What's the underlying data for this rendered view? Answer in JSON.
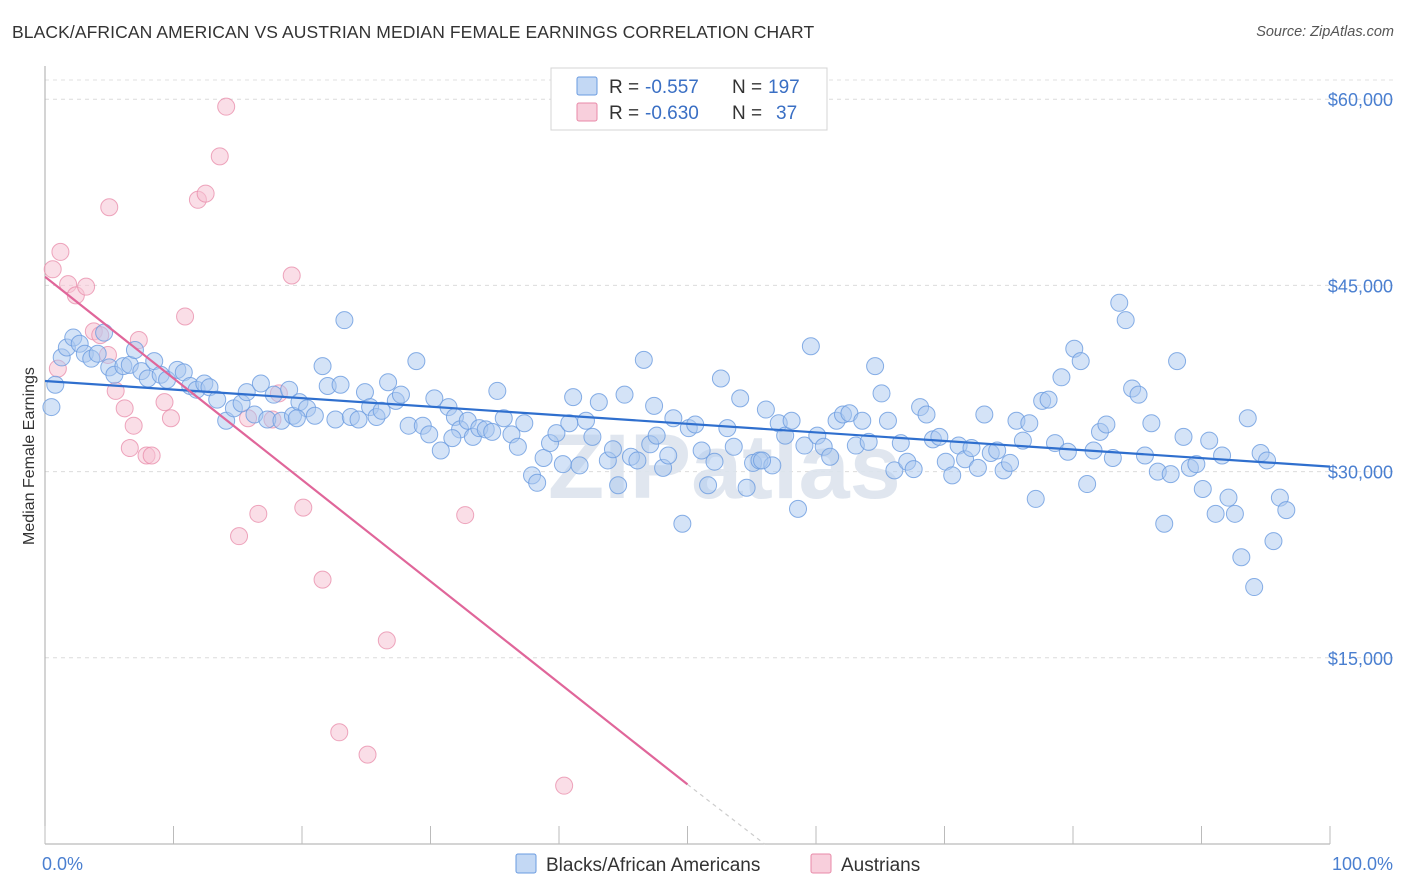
{
  "title": "BLACK/AFRICAN AMERICAN VS AUSTRIAN MEDIAN FEMALE EARNINGS CORRELATION CHART",
  "source": "Source: ZipAtlas.com",
  "watermark": "ZIPatlas",
  "legend_top": [
    {
      "r_label": "R =",
      "r_value": "-0.557",
      "n_label": "N =",
      "n_value": "197",
      "color": "#9bbfee",
      "stroke": "#6a9be0"
    },
    {
      "r_label": "R =",
      "r_value": "-0.630",
      "n_label": "N =",
      "n_value": "37",
      "color": "#f6b8cb",
      "stroke": "#e88aa8"
    }
  ],
  "legend_bottom": [
    "Blacks/African Americans",
    "Austrians"
  ],
  "colors": {
    "blue": "#6a9be0",
    "blue_fill": "#a9c7f0",
    "pink": "#e88aa8",
    "pink_fill": "#f6c3d3",
    "blue_line": "#2f6fce",
    "pink_line": "#e0669a",
    "tick_text": "#4a7fd0"
  },
  "chart_data": {
    "type": "scatter",
    "xlabel": "",
    "ylabel": "Median Female Earnings",
    "xlim": [
      0,
      100
    ],
    "ylim": [
      0,
      63000
    ],
    "x_tick_labels": [
      "0.0%",
      "100.0%"
    ],
    "y_ticks": [
      15000,
      30000,
      45000,
      60000
    ],
    "y_tick_labels": [
      "$15,000",
      "$30,000",
      "$45,000",
      "$60,000"
    ],
    "grid": true,
    "legend_position": "top-center",
    "series": [
      {
        "name": "Blacks/African Americans",
        "trend": {
          "x": [
            0,
            100
          ],
          "y": [
            37300,
            30400
          ]
        },
        "points": [
          [
            0.5,
            35200
          ],
          [
            0.8,
            37000
          ],
          [
            1.3,
            39200
          ],
          [
            1.7,
            40000
          ],
          [
            2.2,
            40800
          ],
          [
            2.7,
            40300
          ],
          [
            3.1,
            39500
          ],
          [
            3.6,
            39100
          ],
          [
            4.1,
            39500
          ],
          [
            4.6,
            41200
          ],
          [
            5.0,
            38400
          ],
          [
            5.4,
            37800
          ],
          [
            6.1,
            38500
          ],
          [
            6.6,
            38600
          ],
          [
            7.0,
            39800
          ],
          [
            7.5,
            38100
          ],
          [
            8.0,
            37500
          ],
          [
            8.5,
            38900
          ],
          [
            9.0,
            37800
          ],
          [
            9.5,
            37400
          ],
          [
            10.3,
            38200
          ],
          [
            10.8,
            38000
          ],
          [
            11.3,
            36900
          ],
          [
            11.8,
            36600
          ],
          [
            12.4,
            37100
          ],
          [
            12.8,
            36800
          ],
          [
            13.4,
            35800
          ],
          [
            14.1,
            34100
          ],
          [
            14.7,
            35100
          ],
          [
            15.3,
            35500
          ],
          [
            15.7,
            36400
          ],
          [
            16.3,
            34600
          ],
          [
            16.8,
            37100
          ],
          [
            17.3,
            34200
          ],
          [
            17.8,
            36200
          ],
          [
            18.4,
            34100
          ],
          [
            19.0,
            36600
          ],
          [
            19.3,
            34500
          ],
          [
            19.8,
            35600
          ],
          [
            20.4,
            35100
          ],
          [
            21.0,
            34500
          ],
          [
            21.6,
            38500
          ],
          [
            22.0,
            36900
          ],
          [
            22.6,
            34200
          ],
          [
            23.0,
            37000
          ],
          [
            23.3,
            42200
          ],
          [
            23.8,
            34400
          ],
          [
            24.4,
            34200
          ],
          [
            24.9,
            36400
          ],
          [
            25.3,
            35200
          ],
          [
            25.8,
            34400
          ],
          [
            26.2,
            34900
          ],
          [
            26.7,
            37200
          ],
          [
            27.3,
            35700
          ],
          [
            27.7,
            36200
          ],
          [
            28.3,
            33700
          ],
          [
            28.9,
            38900
          ],
          [
            29.4,
            33700
          ],
          [
            29.9,
            33000
          ],
          [
            30.3,
            35900
          ],
          [
            30.8,
            31700
          ],
          [
            31.4,
            35200
          ],
          [
            31.9,
            34400
          ],
          [
            32.3,
            33400
          ],
          [
            32.9,
            34100
          ],
          [
            33.3,
            32800
          ],
          [
            33.8,
            33500
          ],
          [
            34.3,
            33400
          ],
          [
            34.8,
            33200
          ],
          [
            35.2,
            36500
          ],
          [
            35.7,
            34300
          ],
          [
            36.3,
            33000
          ],
          [
            36.8,
            32000
          ],
          [
            37.3,
            33900
          ],
          [
            37.9,
            29700
          ],
          [
            38.3,
            29100
          ],
          [
            38.8,
            31100
          ],
          [
            39.3,
            32300
          ],
          [
            39.8,
            33100
          ],
          [
            40.3,
            30600
          ],
          [
            40.8,
            33900
          ],
          [
            41.1,
            36000
          ],
          [
            41.6,
            30500
          ],
          [
            42.1,
            34100
          ],
          [
            42.6,
            32800
          ],
          [
            43.1,
            35600
          ],
          [
            43.8,
            30900
          ],
          [
            44.2,
            31800
          ],
          [
            44.6,
            28900
          ],
          [
            45.1,
            36200
          ],
          [
            45.6,
            31200
          ],
          [
            46.1,
            30900
          ],
          [
            46.6,
            39000
          ],
          [
            47.1,
            32200
          ],
          [
            47.6,
            32900
          ],
          [
            48.1,
            30300
          ],
          [
            48.5,
            31300
          ],
          [
            48.9,
            34300
          ],
          [
            49.6,
            25800
          ],
          [
            50.1,
            33500
          ],
          [
            50.6,
            33800
          ],
          [
            51.1,
            31700
          ],
          [
            51.6,
            28900
          ],
          [
            52.1,
            30800
          ],
          [
            52.6,
            37500
          ],
          [
            53.1,
            33500
          ],
          [
            53.6,
            32000
          ],
          [
            54.1,
            35900
          ],
          [
            54.6,
            28700
          ],
          [
            55.1,
            30700
          ],
          [
            55.6,
            30900
          ],
          [
            56.1,
            35000
          ],
          [
            56.6,
            30500
          ],
          [
            57.1,
            33900
          ],
          [
            57.6,
            32900
          ],
          [
            58.1,
            34100
          ],
          [
            58.6,
            27000
          ],
          [
            59.1,
            32100
          ],
          [
            59.6,
            40100
          ],
          [
            60.1,
            32900
          ],
          [
            60.6,
            32000
          ],
          [
            61.1,
            31200
          ],
          [
            61.6,
            34100
          ],
          [
            62.1,
            34600
          ],
          [
            62.6,
            34700
          ],
          [
            63.1,
            32100
          ],
          [
            63.6,
            34100
          ],
          [
            64.1,
            32400
          ],
          [
            64.6,
            38500
          ],
          [
            65.1,
            36300
          ],
          [
            65.6,
            34100
          ],
          [
            66.1,
            30100
          ],
          [
            66.6,
            32300
          ],
          [
            67.1,
            30800
          ],
          [
            67.6,
            30200
          ],
          [
            68.1,
            35200
          ],
          [
            68.6,
            34600
          ],
          [
            69.1,
            32600
          ],
          [
            69.6,
            32800
          ],
          [
            70.1,
            30800
          ],
          [
            70.6,
            29700
          ],
          [
            71.1,
            32100
          ],
          [
            71.6,
            31000
          ],
          [
            72.1,
            31900
          ],
          [
            72.6,
            30300
          ],
          [
            73.1,
            34600
          ],
          [
            73.6,
            31500
          ],
          [
            74.1,
            31700
          ],
          [
            74.6,
            30100
          ],
          [
            75.1,
            30700
          ],
          [
            75.6,
            34100
          ],
          [
            76.1,
            32500
          ],
          [
            76.6,
            33900
          ],
          [
            77.1,
            27800
          ],
          [
            77.6,
            35700
          ],
          [
            78.1,
            35800
          ],
          [
            78.6,
            32300
          ],
          [
            79.1,
            37600
          ],
          [
            79.6,
            31600
          ],
          [
            80.1,
            39900
          ],
          [
            80.6,
            38900
          ],
          [
            81.1,
            29000
          ],
          [
            81.6,
            31700
          ],
          [
            82.1,
            33200
          ],
          [
            82.6,
            33800
          ],
          [
            83.1,
            31100
          ],
          [
            83.6,
            43600
          ],
          [
            84.1,
            42200
          ],
          [
            84.6,
            36700
          ],
          [
            85.1,
            36200
          ],
          [
            85.6,
            31300
          ],
          [
            86.1,
            33900
          ],
          [
            86.6,
            30000
          ],
          [
            87.1,
            25800
          ],
          [
            87.6,
            29800
          ],
          [
            88.1,
            38900
          ],
          [
            88.6,
            32800
          ],
          [
            89.1,
            30300
          ],
          [
            89.6,
            30600
          ],
          [
            90.1,
            28600
          ],
          [
            90.6,
            32500
          ],
          [
            91.1,
            26600
          ],
          [
            91.6,
            31300
          ],
          [
            92.1,
            27900
          ],
          [
            92.6,
            26600
          ],
          [
            93.1,
            23100
          ],
          [
            93.6,
            34300
          ],
          [
            94.1,
            20700
          ],
          [
            94.6,
            31500
          ],
          [
            95.1,
            30900
          ],
          [
            95.6,
            24400
          ],
          [
            96.1,
            27900
          ],
          [
            96.6,
            26900
          ],
          [
            55.8,
            30900
          ],
          [
            31.7,
            32700
          ],
          [
            47.4,
            35300
          ],
          [
            19.6,
            34300
          ]
        ]
      },
      {
        "name": "Austrians",
        "trend": {
          "x": [
            0,
            50
          ],
          "y": [
            45700,
            4800
          ]
        },
        "trend_dashed": {
          "x": [
            50,
            56
          ],
          "y": [
            4800,
            0
          ]
        },
        "points": [
          [
            0.6,
            46300
          ],
          [
            1.2,
            47700
          ],
          [
            1.8,
            45100
          ],
          [
            2.4,
            44200
          ],
          [
            3.2,
            44900
          ],
          [
            3.8,
            41300
          ],
          [
            4.3,
            41000
          ],
          [
            4.9,
            39400
          ],
          [
            5.5,
            36500
          ],
          [
            6.2,
            35100
          ],
          [
            6.9,
            33700
          ],
          [
            7.3,
            40600
          ],
          [
            7.9,
            31300
          ],
          [
            9.3,
            35600
          ],
          [
            9.8,
            34300
          ],
          [
            10.9,
            42500
          ],
          [
            11.9,
            51900
          ],
          [
            12.5,
            52400
          ],
          [
            13.6,
            55400
          ],
          [
            14.1,
            59400
          ],
          [
            15.1,
            24800
          ],
          [
            15.8,
            34300
          ],
          [
            16.6,
            26600
          ],
          [
            17.7,
            34200
          ],
          [
            18.2,
            36300
          ],
          [
            19.2,
            45800
          ],
          [
            20.1,
            27100
          ],
          [
            21.6,
            21300
          ],
          [
            22.9,
            9000
          ],
          [
            25.1,
            7200
          ],
          [
            26.6,
            16400
          ],
          [
            32.7,
            26500
          ],
          [
            40.4,
            4700
          ],
          [
            5.0,
            51300
          ],
          [
            6.6,
            31900
          ],
          [
            8.3,
            31300
          ],
          [
            1.0,
            38300
          ]
        ]
      }
    ]
  }
}
